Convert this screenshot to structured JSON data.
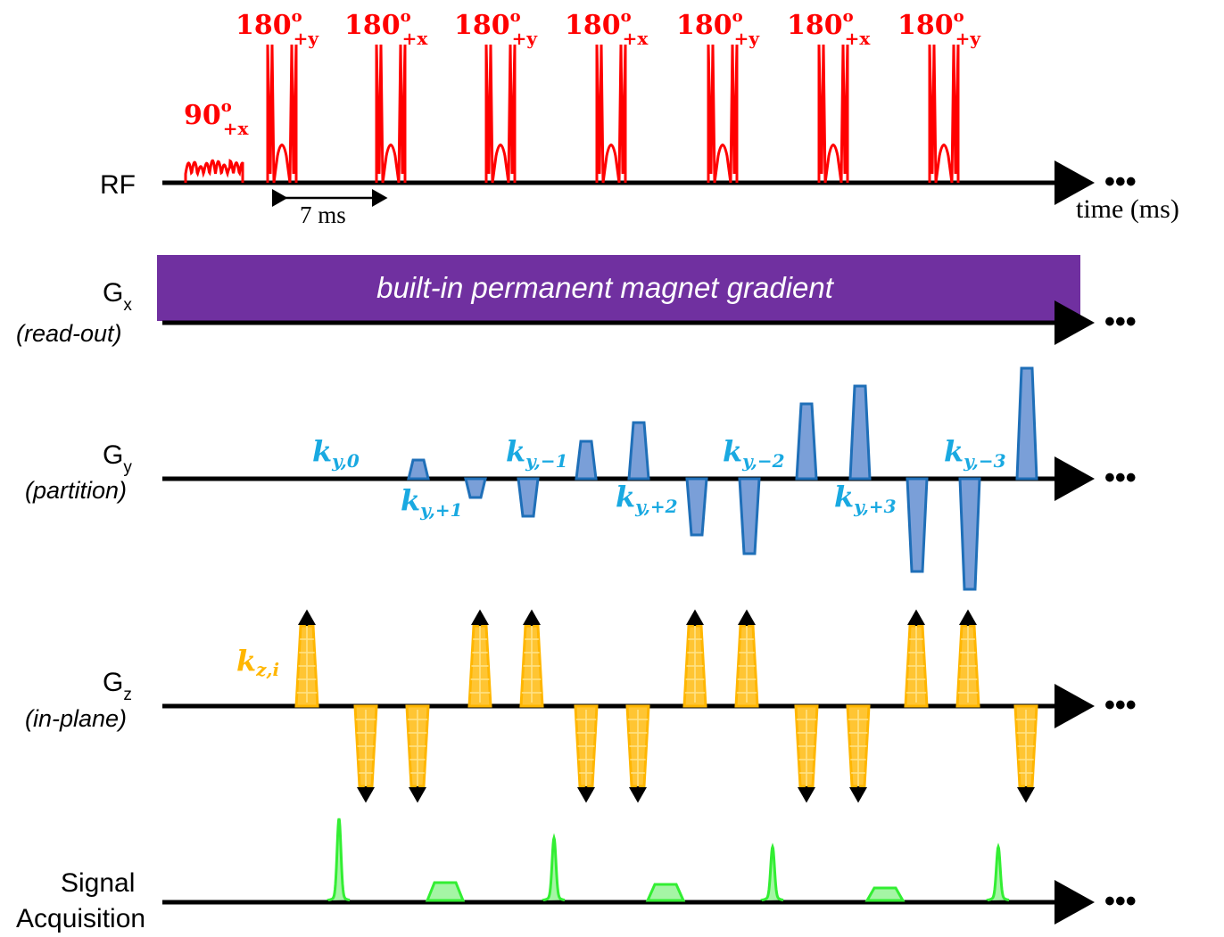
{
  "rows": {
    "rf": {
      "label": "RF"
    },
    "gx": {
      "label_main": "G",
      "label_sub": "x",
      "label_role": "(read-out)"
    },
    "gy": {
      "label_main": "G",
      "label_sub": "y",
      "label_role": "(partition)"
    },
    "gz": {
      "label_main": "G",
      "label_sub": "z",
      "label_role": "(in-plane)"
    },
    "sig": {
      "label_line1": "Signal",
      "label_line2": "Acquisition"
    }
  },
  "continuation": "•••",
  "time_axis_label": "time (ms)",
  "spacing_label": "7 ms",
  "gradient_band_text": "built-in permanent magnet gradient",
  "pulses": {
    "excitation": {
      "angle": "90",
      "deg": "o",
      "phase": "+x"
    },
    "refocusing": [
      {
        "angle": "180",
        "deg": "o",
        "phase": "+y"
      },
      {
        "angle": "180",
        "deg": "o",
        "phase": "+x"
      },
      {
        "angle": "180",
        "deg": "o",
        "phase": "+y"
      },
      {
        "angle": "180",
        "deg": "o",
        "phase": "+x"
      },
      {
        "angle": "180",
        "deg": "o",
        "phase": "+y"
      },
      {
        "angle": "180",
        "deg": "o",
        "phase": "+x"
      },
      {
        "angle": "180",
        "deg": "o",
        "phase": "+y"
      }
    ]
  },
  "ky_labels": [
    {
      "base": "k",
      "sub": "y,0"
    },
    {
      "base": "k",
      "sub": "y,+1"
    },
    {
      "base": "k",
      "sub": "y,−1"
    },
    {
      "base": "k",
      "sub": "y,+2"
    },
    {
      "base": "k",
      "sub": "y,−2"
    },
    {
      "base": "k",
      "sub": "y,+3"
    },
    {
      "base": "k",
      "sub": "y,−3"
    }
  ],
  "kz_label": {
    "base": "k",
    "sub": "z,i"
  },
  "colors": {
    "rf": "#ff0000",
    "band": "#7030a0",
    "gy_fill": "#7a9fd8",
    "gy_stroke": "#1f6fb8",
    "gz_fill": "#ffc533",
    "gz_stroke": "#ffb600",
    "signal": "#33ee33"
  }
}
